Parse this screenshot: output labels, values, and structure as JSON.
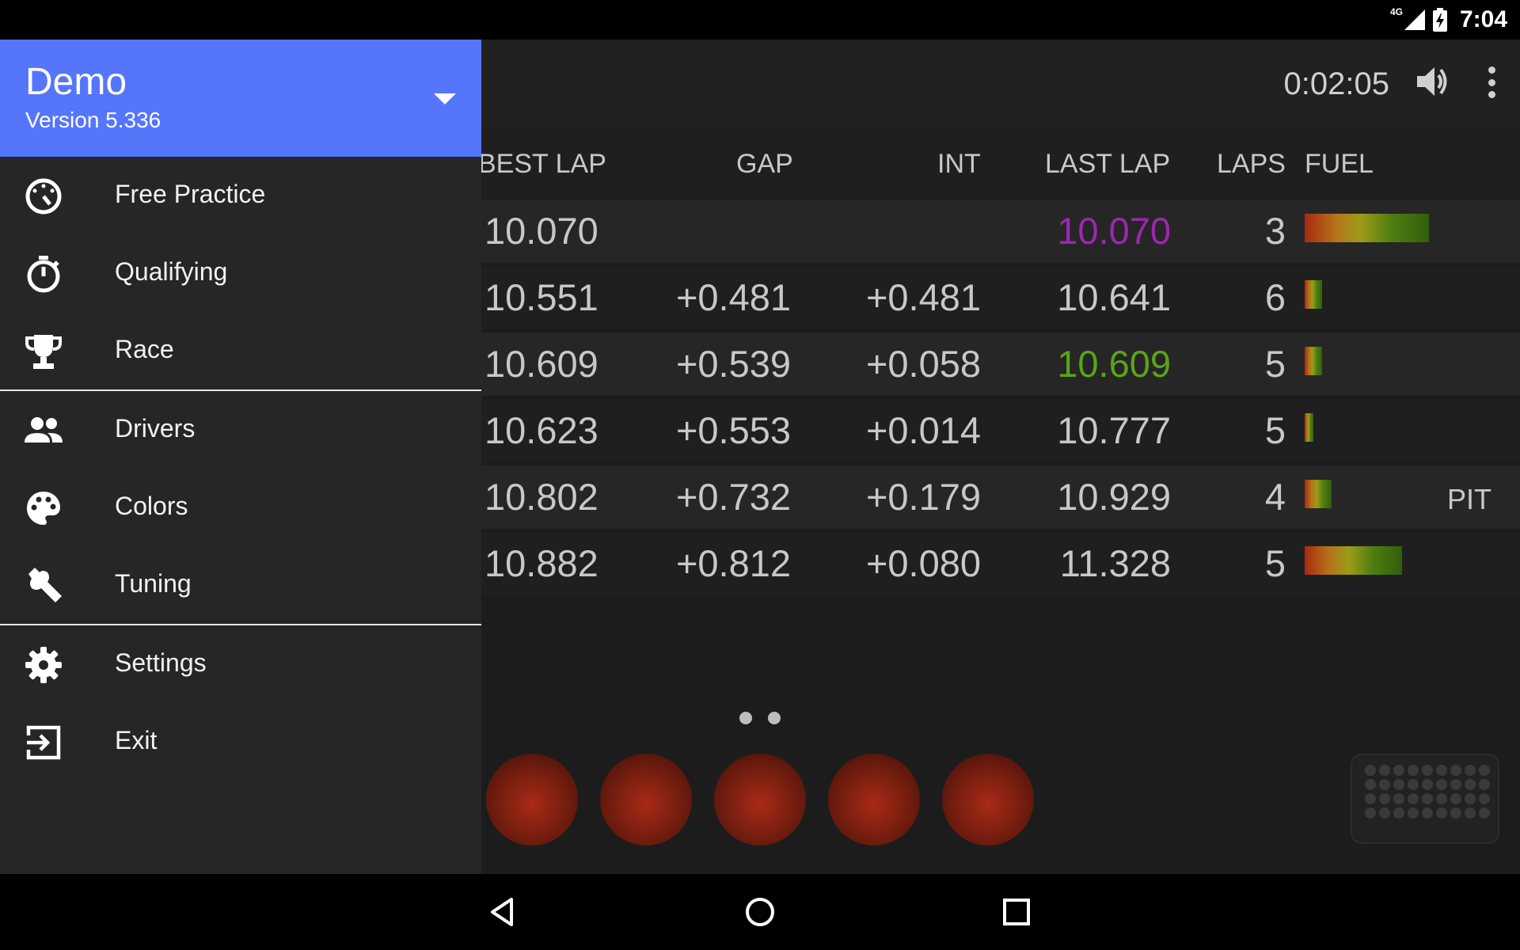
{
  "status_bar": {
    "time": "7:04",
    "network": "4G"
  },
  "app_bar": {
    "timer": "0:02:05",
    "volume_icon": "volume-icon",
    "more_icon": "more-vert-icon"
  },
  "table": {
    "headers": [
      "BEST LAP",
      "GAP",
      "INT",
      "LAST LAP",
      "LAPS",
      "FUEL"
    ],
    "rows": [
      {
        "best": "10.070",
        "gap": "",
        "int": "",
        "last": "10.070",
        "last_color": "#9c27b0",
        "laps": "3",
        "fuel": 0.56,
        "status": ""
      },
      {
        "best": "10.551",
        "gap": "+0.481",
        "int": "+0.481",
        "last": "10.641",
        "last_color": "#c8c8c8",
        "laps": "6",
        "fuel": 0.08,
        "status": ""
      },
      {
        "best": "10.609",
        "gap": "+0.539",
        "int": "+0.058",
        "last": "10.609",
        "last_color": "#5aa418",
        "laps": "5",
        "fuel": 0.08,
        "status": ""
      },
      {
        "best": "10.623",
        "gap": "+0.553",
        "int": "+0.014",
        "last": "10.777",
        "last_color": "#c8c8c8",
        "laps": "5",
        "fuel": 0.04,
        "status": ""
      },
      {
        "best": "10.802",
        "gap": "+0.732",
        "int": "+0.179",
        "last": "10.929",
        "last_color": "#c8c8c8",
        "laps": "4",
        "fuel": 0.12,
        "status": "PIT"
      },
      {
        "best": "10.882",
        "gap": "+0.812",
        "int": "+0.080",
        "last": "11.328",
        "last_color": "#c8c8c8",
        "laps": "5",
        "fuel": 0.44,
        "status": ""
      }
    ]
  },
  "drawer": {
    "title": "Demo",
    "subtitle": "Version 5.336",
    "items": [
      {
        "label": "Free Practice",
        "icon": "speedometer-icon"
      },
      {
        "label": "Qualifying",
        "icon": "stopwatch-icon"
      },
      {
        "label": "Race",
        "icon": "trophy-icon"
      },
      {
        "label": "Drivers",
        "icon": "people-icon"
      },
      {
        "label": "Colors",
        "icon": "palette-icon"
      },
      {
        "label": "Tuning",
        "icon": "wrench-icon"
      },
      {
        "label": "Settings",
        "icon": "gear-icon"
      },
      {
        "label": "Exit",
        "icon": "exit-icon"
      }
    ]
  },
  "colors": {
    "accent": "#5575fb",
    "fastest_lap": "#9c27b0",
    "personal_best": "#5aa418"
  },
  "nav": {
    "back_icon": "back-icon",
    "home_icon": "home-icon",
    "recents_icon": "recents-icon"
  }
}
